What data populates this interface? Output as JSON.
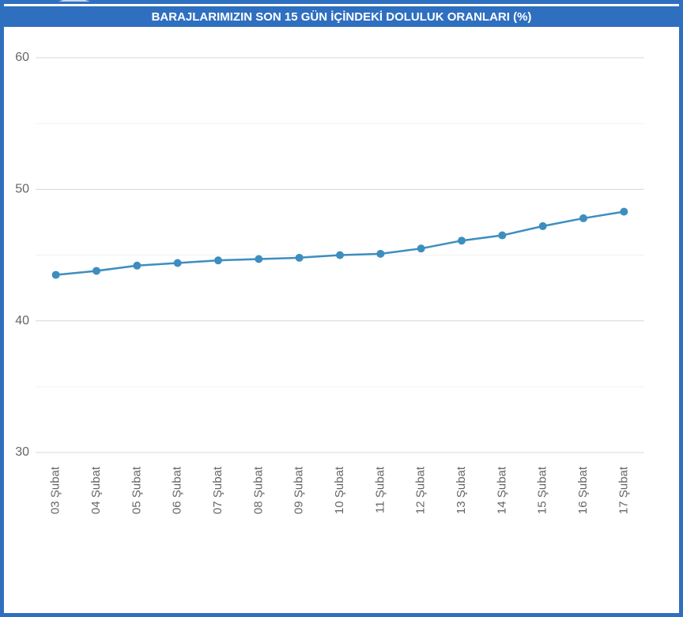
{
  "chart_data": {
    "type": "line",
    "title": "BARAJLARIMIZIN SON 15 GÜN İÇİNDEKİ DOLULUK ORANLARI (%)",
    "categories": [
      "03 Şubat",
      "04 Şubat",
      "05 Şubat",
      "06 Şubat",
      "07 Şubat",
      "08 Şubat",
      "09 Şubat",
      "10 Şubat",
      "11 Şubat",
      "12 Şubat",
      "13 Şubat",
      "14 Şubat",
      "15 Şubat",
      "16 Şubat",
      "17 Şubat"
    ],
    "values": [
      43.5,
      43.8,
      44.2,
      44.4,
      44.6,
      44.7,
      44.8,
      45.0,
      45.1,
      45.5,
      46.1,
      46.5,
      47.2,
      47.8,
      48.3
    ],
    "color": "#3d8ebf",
    "ylim": [
      30,
      60
    ],
    "yticks": [
      30,
      40,
      50,
      60
    ],
    "minor_yticks": [
      35,
      45,
      55
    ],
    "grid": true
  }
}
